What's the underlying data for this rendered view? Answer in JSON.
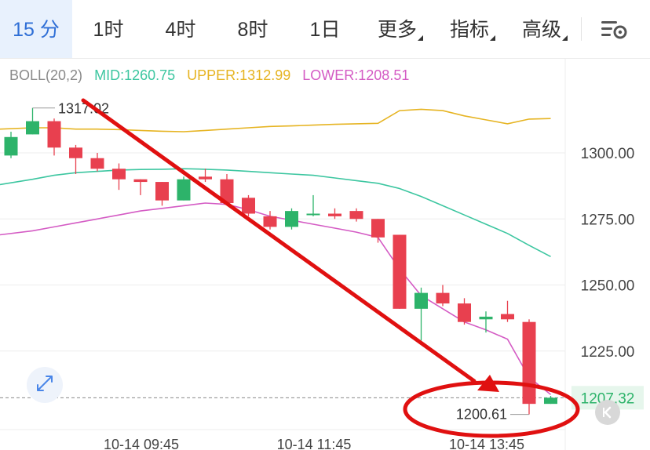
{
  "tabs": [
    {
      "label": "15 分",
      "active": true,
      "dropdown": false
    },
    {
      "label": "1时",
      "active": false,
      "dropdown": false
    },
    {
      "label": "4时",
      "active": false,
      "dropdown": false
    },
    {
      "label": "8时",
      "active": false,
      "dropdown": false
    },
    {
      "label": "1日",
      "active": false,
      "dropdown": false
    },
    {
      "label": "更多",
      "active": false,
      "dropdown": true
    },
    {
      "label": "指标",
      "active": false,
      "dropdown": true
    },
    {
      "label": "高级",
      "active": false,
      "dropdown": true
    }
  ],
  "settings_icon": "chart-settings-icon",
  "indicator": {
    "name": "BOLL(20,2)",
    "mid": "MID:1260.75",
    "upper": "UPPER:1312.99",
    "lower": "LOWER:1208.51"
  },
  "colors": {
    "up": "#2db36a",
    "down": "#e8404f",
    "mid": "#3cc6a0",
    "upper": "#e6b422",
    "lower": "#d45bc4",
    "annotation": "#e01010",
    "price_tag_bg": "#e6f6ec",
    "price_tag_text": "#2db36a"
  },
  "chart_data": {
    "type": "candlestick",
    "y_ticks": [
      "1300.00",
      "1275.00",
      "1250.00",
      "1225.00"
    ],
    "x_labels": [
      "10-14 09:45",
      "10-14 11:45",
      "10-14 13:45"
    ],
    "high_label": "1317.02",
    "low_label": "1200.61",
    "current_price": "1207.32",
    "candles": [
      {
        "o": 1299,
        "h": 1308,
        "c": 1306,
        "l": 1298
      },
      {
        "o": 1307,
        "h": 1317,
        "c": 1312,
        "l": 1307
      },
      {
        "o": 1312,
        "h": 1313,
        "c": 1302,
        "l": 1299
      },
      {
        "o": 1302,
        "h": 1303,
        "c": 1298,
        "l": 1292
      },
      {
        "o": 1298,
        "h": 1300,
        "c": 1294,
        "l": 1293
      },
      {
        "o": 1294,
        "h": 1296,
        "c": 1290,
        "l": 1286
      },
      {
        "o": 1290,
        "h": 1290,
        "c": 1289,
        "l": 1284
      },
      {
        "o": 1289,
        "h": 1289,
        "c": 1282,
        "l": 1280
      },
      {
        "o": 1282,
        "h": 1291,
        "c": 1290,
        "l": 1282
      },
      {
        "o": 1291,
        "h": 1294,
        "c": 1290,
        "l": 1289
      },
      {
        "o": 1290,
        "h": 1292,
        "c": 1281,
        "l": 1281
      },
      {
        "o": 1283,
        "h": 1284,
        "c": 1277,
        "l": 1276
      },
      {
        "o": 1276,
        "h": 1278,
        "c": 1272,
        "l": 1271
      },
      {
        "o": 1272,
        "h": 1279,
        "c": 1278,
        "l": 1271
      },
      {
        "o": 1277,
        "h": 1284,
        "c": 1277,
        "l": 1276
      },
      {
        "o": 1277,
        "h": 1279,
        "c": 1276,
        "l": 1275
      },
      {
        "o": 1278,
        "h": 1279,
        "c": 1275,
        "l": 1274
      },
      {
        "o": 1275,
        "h": 1275,
        "c": 1268,
        "l": 1266
      },
      {
        "o": 1269,
        "h": 1269,
        "c": 1241,
        "l": 1241
      },
      {
        "o": 1241,
        "h": 1249,
        "c": 1247,
        "l": 1229
      },
      {
        "o": 1247,
        "h": 1250,
        "c": 1243,
        "l": 1242
      },
      {
        "o": 1243,
        "h": 1245,
        "c": 1236,
        "l": 1235
      },
      {
        "o": 1237,
        "h": 1240,
        "c": 1238,
        "l": 1232
      },
      {
        "o": 1239,
        "h": 1244,
        "c": 1237,
        "l": 1236
      },
      {
        "o": 1236,
        "h": 1237,
        "c": 1205,
        "l": 1201
      },
      {
        "o": 1205,
        "h": 1208,
        "c": 1207.32,
        "l": 1205
      }
    ],
    "upper_band": [
      1309,
      1309.5,
      1309.5,
      1309,
      1309,
      1308.8,
      1308.5,
      1308.2,
      1308,
      1308.5,
      1309,
      1309.5,
      1310,
      1310.2,
      1310.5,
      1310.8,
      1311,
      1311.2,
      1316,
      1316.5,
      1316,
      1314,
      1312.5,
      1311,
      1312.8,
      1312.99
    ],
    "mid_band": [
      1288,
      1290,
      1291.5,
      1292.5,
      1293,
      1293.5,
      1293.7,
      1293.8,
      1294,
      1293.8,
      1293.5,
      1293,
      1292.5,
      1292,
      1291.5,
      1290.5,
      1289.5,
      1288.5,
      1286.5,
      1283.5,
      1280,
      1276.5,
      1273,
      1269.5,
      1265,
      1260.75
    ],
    "lower_band": [
      1269,
      1270.5,
      1272,
      1273.5,
      1275,
      1276.5,
      1278,
      1279,
      1280,
      1281,
      1280.5,
      1278.5,
      1276,
      1274.5,
      1273,
      1271.5,
      1270,
      1268,
      1256,
      1246,
      1241,
      1236,
      1233,
      1229.5,
      1215,
      1208.51
    ]
  }
}
